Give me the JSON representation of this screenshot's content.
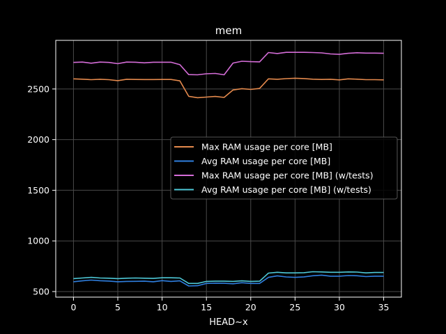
{
  "chart_data": {
    "type": "line",
    "title": "mem",
    "xlabel": "HEAD~x",
    "ylabel": "",
    "xlim": [
      -2,
      37
    ],
    "ylim": [
      445,
      2980
    ],
    "xticks": [
      0,
      5,
      10,
      15,
      20,
      25,
      30,
      35
    ],
    "yticks": [
      500,
      1000,
      1500,
      2000,
      2500
    ],
    "grid": true,
    "legend_position": "center-right",
    "x": [
      0,
      1,
      2,
      3,
      4,
      5,
      6,
      7,
      8,
      9,
      10,
      11,
      12,
      13,
      14,
      15,
      16,
      17,
      18,
      19,
      20,
      21,
      22,
      23,
      24,
      25,
      26,
      27,
      28,
      29,
      30,
      31,
      32,
      33,
      34,
      35
    ],
    "series": [
      {
        "name": "Max RAM usage per core [MB]",
        "color": "#e58a4d",
        "values": [
          2600,
          2597,
          2592,
          2596,
          2592,
          2582,
          2596,
          2594,
          2593,
          2593,
          2594,
          2594,
          2580,
          2428,
          2414,
          2420,
          2426,
          2417,
          2490,
          2503,
          2496,
          2505,
          2600,
          2596,
          2602,
          2606,
          2603,
          2597,
          2594,
          2596,
          2590,
          2600,
          2597,
          2592,
          2592,
          2590
        ]
      },
      {
        "name": "Avg RAM usage per core [MB]",
        "color": "#2f7fe0",
        "values": [
          597,
          606,
          613,
          607,
          604,
          597,
          600,
          601,
          602,
          597,
          608,
          600,
          606,
          555,
          558,
          580,
          583,
          582,
          577,
          587,
          580,
          580,
          640,
          655,
          644,
          640,
          645,
          656,
          662,
          652,
          652,
          658,
          656,
          648,
          652,
          652
        ]
      },
      {
        "name": "Max RAM usage per core [MB] (w/tests)",
        "color": "#d56dd8",
        "values": [
          2762,
          2766,
          2755,
          2766,
          2762,
          2750,
          2766,
          2764,
          2758,
          2764,
          2764,
          2764,
          2740,
          2642,
          2640,
          2650,
          2654,
          2640,
          2756,
          2774,
          2770,
          2768,
          2860,
          2850,
          2862,
          2862,
          2862,
          2860,
          2856,
          2846,
          2842,
          2852,
          2858,
          2854,
          2854,
          2852
        ]
      },
      {
        "name": "Avg RAM usage per core [MB] (w/tests)",
        "color": "#4ec9d8",
        "values": [
          628,
          634,
          640,
          634,
          632,
          628,
          632,
          634,
          632,
          630,
          636,
          636,
          634,
          580,
          580,
          600,
          602,
          602,
          600,
          606,
          600,
          602,
          682,
          690,
          684,
          684,
          686,
          696,
          694,
          690,
          690,
          694,
          692,
          684,
          688,
          688
        ]
      }
    ]
  }
}
